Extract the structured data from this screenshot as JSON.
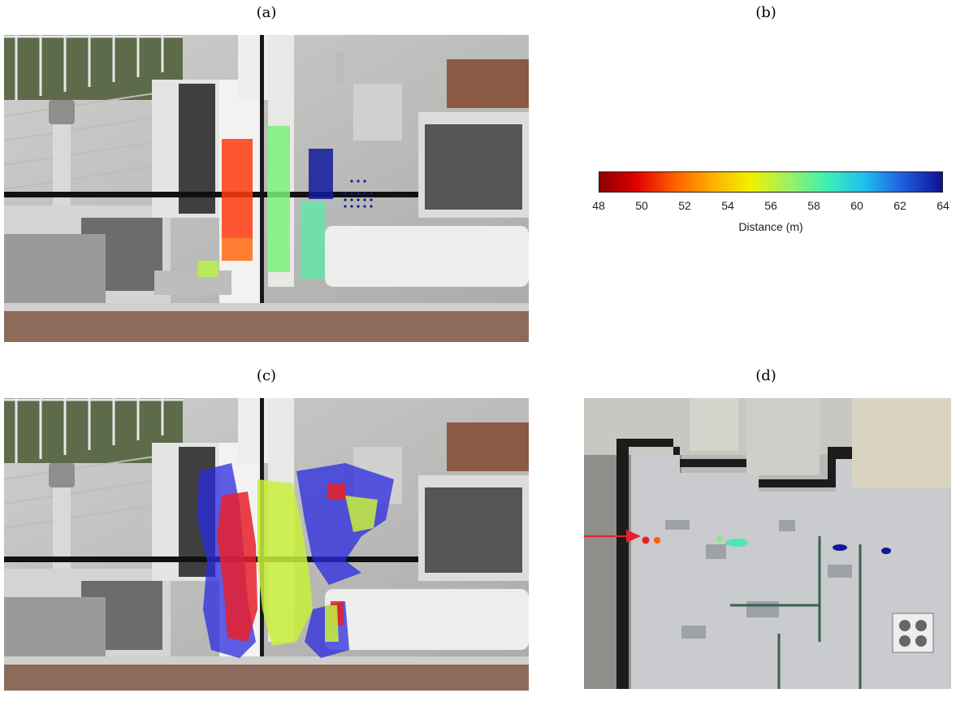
{
  "panels": {
    "a": {
      "label": "(a)"
    },
    "b": {
      "label": "(b)"
    },
    "c": {
      "label": "(c)"
    },
    "d": {
      "label": "(d)"
    }
  },
  "colorbar": {
    "ticks": [
      "48",
      "50",
      "52",
      "54",
      "56",
      "58",
      "60",
      "62",
      "64"
    ],
    "min": 48,
    "max": 64,
    "title": "Distance (m)",
    "colormap": [
      "#8b0000",
      "#e00000",
      "#ff6000",
      "#ffb000",
      "#f0f000",
      "#a0f060",
      "#40f0b0",
      "#20c0f0",
      "#2060e0",
      "#101090"
    ]
  },
  "colors": {
    "red_points": "#e8202a",
    "orange_points": "#ff5a10",
    "green_points": "#7cf07a",
    "cyan_points": "#50e8b0",
    "navy_points": "#101a9a",
    "blue_points": "#2a2ae0",
    "yellowgreen_points": "#c8f03a",
    "arrow": "#e8202a"
  }
}
